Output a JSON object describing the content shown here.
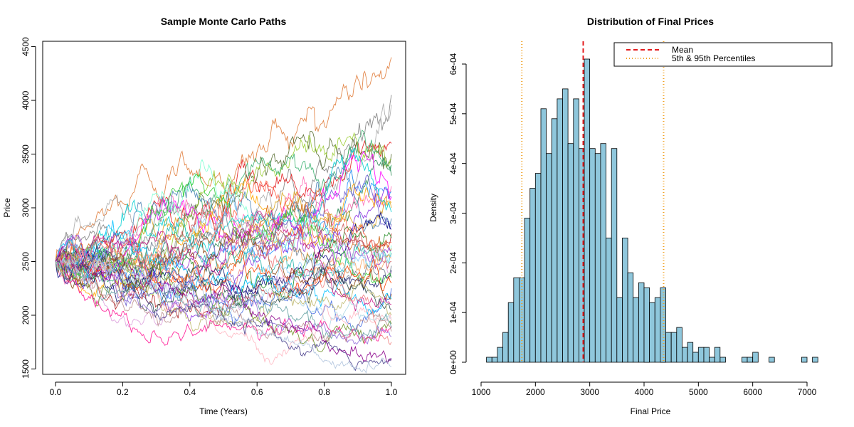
{
  "chart_data": [
    {
      "type": "line",
      "title": "Sample Monte Carlo Paths",
      "xlabel": "Time (Years)",
      "ylabel": "Price",
      "xlim": [
        0,
        1
      ],
      "ylim": [
        1450,
        4550
      ],
      "x_ticks": [
        0.0,
        0.2,
        0.4,
        0.6,
        0.8,
        1.0
      ],
      "x_tick_labels": [
        "0.0",
        "0.2",
        "0.4",
        "0.6",
        "0.8",
        "1.0"
      ],
      "y_ticks": [
        1500,
        2000,
        2500,
        3000,
        3500,
        4000,
        4500
      ],
      "y_tick_labels": [
        "1500",
        "2000",
        "2500",
        "3000",
        "3500",
        "4000",
        "4500"
      ],
      "grid": false,
      "start_value": 2500,
      "series_count": 50,
      "series_end_values": [
        4400,
        4050,
        3960,
        3600,
        3500,
        3450,
        3400,
        3300,
        3200,
        3150,
        3100,
        3100,
        3050,
        3000,
        2960,
        2900,
        2850,
        2800,
        2760,
        2720,
        2680,
        2650,
        2620,
        2600,
        2580,
        2550,
        2530,
        2500,
        2460,
        2420,
        2400,
        2350,
        2300,
        2250,
        2200,
        2150,
        2100,
        2050,
        2000,
        1980,
        1950,
        1920,
        1900,
        1880,
        1850,
        1800,
        1750,
        1600,
        1580,
        1520
      ],
      "colors": [
        "#e07b39",
        "#808080",
        "#a9a9a9",
        "#e31a1c",
        "#556b2f",
        "#9acd32",
        "#3cb371",
        "#2e8b57",
        "#ff69b4",
        "#1e90ff",
        "#8a2be2",
        "#ff00ff",
        "#ffa500",
        "#daa520",
        "#00ced1",
        "#4682b4",
        "#6a5acd",
        "#000080",
        "#b22222",
        "#228b22",
        "#ff6347",
        "#7fffd4",
        "#d2691e",
        "#9932cc",
        "#20b2aa",
        "#87cefa",
        "#f4a460",
        "#cd5c5c",
        "#708090",
        "#191970",
        "#dda0dd",
        "#32cd32",
        "#ff4500",
        "#4169e1",
        "#8b4513",
        "#00bfff",
        "#c71585",
        "#2f4f4f",
        "#bdb76b",
        "#add8e6",
        "#ffb6c1",
        "#6b8e23",
        "#ff1493",
        "#5f9ea0",
        "#bc8f8f",
        "#9370db",
        "#f08080",
        "#483d8b",
        "#8b008b",
        "#b0c4de"
      ]
    },
    {
      "type": "bar",
      "title": "Distribution of Final Prices",
      "xlabel": "Final Price",
      "ylabel": "Density",
      "xlim": [
        1000,
        7200
      ],
      "ylim": [
        0,
        0.00061
      ],
      "bin_width": 100,
      "bin_starts": [
        1100,
        1200,
        1300,
        1400,
        1500,
        1600,
        1700,
        1800,
        1900,
        2000,
        2100,
        2200,
        2300,
        2400,
        2500,
        2600,
        2700,
        2800,
        2900,
        3000,
        3100,
        3200,
        3300,
        3400,
        3500,
        3600,
        3700,
        3800,
        3900,
        4000,
        4100,
        4200,
        4300,
        4400,
        4500,
        4600,
        4700,
        4800,
        4900,
        5000,
        5100,
        5200,
        5300,
        5400,
        5500,
        5600,
        5700,
        5800,
        5900,
        6000,
        6100,
        6200,
        6300,
        6400,
        6500,
        6600,
        6700,
        6800,
        6900,
        7000,
        7100
      ],
      "values": [
        1e-05,
        1e-05,
        3e-05,
        6e-05,
        0.00012,
        0.00017,
        0.00017,
        0.00029,
        0.00035,
        0.00038,
        0.00051,
        0.00042,
        0.00049,
        0.00053,
        0.00055,
        0.00044,
        0.00053,
        0.00043,
        0.00061,
        0.00043,
        0.00042,
        0.00044,
        0.00025,
        0.00043,
        0.00013,
        0.00025,
        0.00018,
        0.00013,
        0.00016,
        0.00015,
        0.00012,
        0.00013,
        0.00015,
        6e-05,
        6e-05,
        7e-05,
        3e-05,
        4e-05,
        2e-05,
        3e-05,
        3e-05,
        1e-05,
        3e-05,
        1e-05,
        0,
        0,
        0,
        1e-05,
        1e-05,
        2e-05,
        0,
        0,
        1e-05,
        0,
        0,
        0,
        0,
        0,
        1e-05,
        0,
        1e-05
      ],
      "x_ticks": [
        1000,
        2000,
        3000,
        4000,
        5000,
        6000,
        7000
      ],
      "x_tick_labels": [
        "1000",
        "2000",
        "3000",
        "4000",
        "5000",
        "6000",
        "7000"
      ],
      "y_ticks": [
        0,
        0.0001,
        0.0002,
        0.0003,
        0.0004,
        0.0005,
        0.0006
      ],
      "y_tick_labels": [
        "0e+00",
        "1e-04",
        "2e-04",
        "3e-04",
        "4e-04",
        "5e-04",
        "6e-04"
      ],
      "bar_color": "#8fc7dc",
      "mean": 2880,
      "percentile_5": 1750,
      "percentile_95": 4360,
      "mean_color": "#e31a1c",
      "percentile_color": "#f0a020",
      "legend": {
        "position": "top-right",
        "entries": [
          "Mean",
          "5th & 95th Percentiles"
        ]
      },
      "grid": false
    }
  ]
}
